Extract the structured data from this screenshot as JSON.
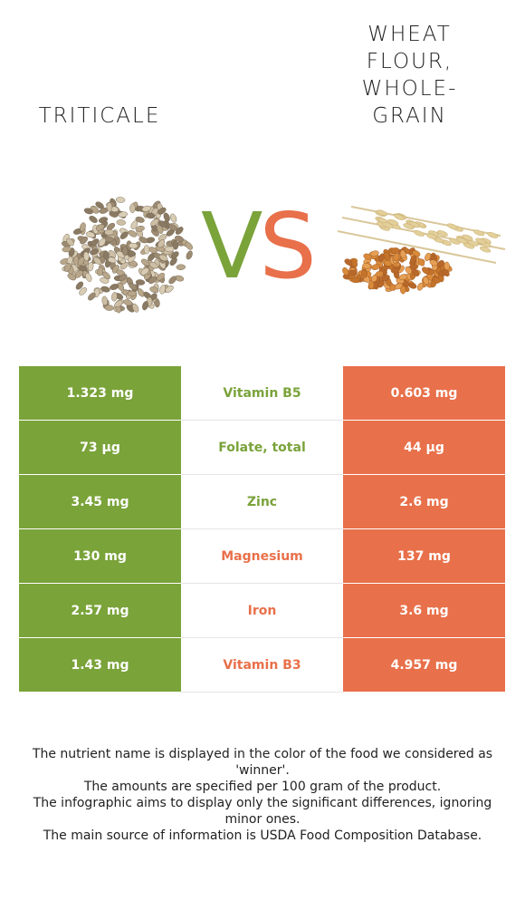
{
  "left_food": {
    "name": "Triticale",
    "color": "#7aa33a",
    "image": "triticale-grains-icon"
  },
  "right_food": {
    "name": "Wheat flour, whole-grain",
    "color": "#e8704a",
    "image": "wheat-grains-icon"
  },
  "vs": {
    "v": "V",
    "s": "S"
  },
  "rows": [
    {
      "nutrient": "Vitamin B5",
      "left": "1.323 mg",
      "right": "0.603 mg",
      "winner": "left"
    },
    {
      "nutrient": "Folate, total",
      "left": "73 µg",
      "right": "44 µg",
      "winner": "left"
    },
    {
      "nutrient": "Zinc",
      "left": "3.45 mg",
      "right": "2.6 mg",
      "winner": "left"
    },
    {
      "nutrient": "Magnesium",
      "left": "130 mg",
      "right": "137 mg",
      "winner": "right"
    },
    {
      "nutrient": "Iron",
      "left": "2.57 mg",
      "right": "3.6 mg",
      "winner": "right"
    },
    {
      "nutrient": "Vitamin B3",
      "left": "1.43 mg",
      "right": "4.957 mg",
      "winner": "right"
    }
  ],
  "footnote": [
    "The nutrient name is displayed in the color of the food we considered as 'winner'.",
    "The amounts are specified per 100 gram of the product.",
    "The infographic aims to display only the significant differences, ignoring minor ones.",
    "The main source of information is USDA Food Composition Database."
  ]
}
